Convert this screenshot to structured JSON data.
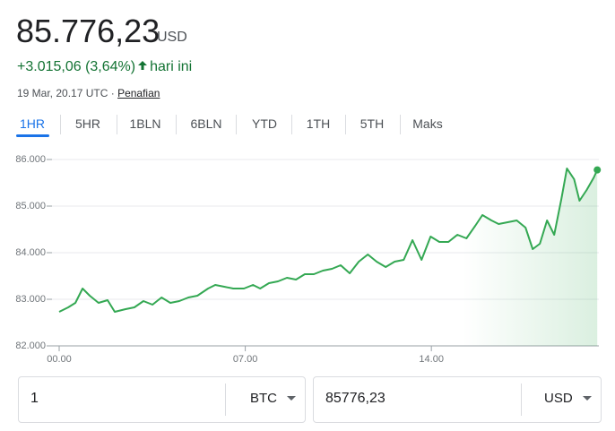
{
  "header": {
    "price": "85.776,23",
    "currency": "USD",
    "change": "+3.015,06 (3,64%)",
    "period": "hari ini",
    "timestamp": "19 Mar, 20.17 UTC ·",
    "disclaimer": "Penafian"
  },
  "tabs": [
    "1HR",
    "5HR",
    "1BLN",
    "6BLN",
    "YTD",
    "1TH",
    "5TH",
    "Maks"
  ],
  "converter": {
    "amount": "1",
    "from": "BTC",
    "result": "85776,23",
    "to": "USD"
  },
  "chart_data": {
    "type": "line",
    "x": [
      0,
      0.34,
      0.61,
      0.88,
      1.15,
      1.48,
      1.82,
      2.09,
      2.5,
      2.83,
      3.17,
      3.51,
      3.85,
      4.18,
      4.52,
      4.86,
      5.2,
      5.6,
      5.87,
      6.21,
      6.55,
      6.95,
      7.29,
      7.56,
      7.89,
      8.23,
      8.57,
      8.91,
      9.24,
      9.58,
      9.92,
      10.26,
      10.59,
      10.93,
      11.27,
      11.61,
      11.94,
      12.28,
      12.62,
      12.96,
      13.29,
      13.63,
      13.97,
      14.3,
      14.64,
      14.98,
      15.32,
      15.65,
      15.92,
      16.26,
      16.53,
      16.87,
      17.21,
      17.54,
      17.81,
      18.08,
      18.35,
      18.62,
      18.89,
      19.1,
      19.37,
      19.57,
      19.84,
      20.11,
      20.24
    ],
    "series": [
      {
        "name": "BTC",
        "color": "#34a853",
        "values": [
          82731,
          82827,
          82923,
          83231,
          83077,
          82923,
          82981,
          82731,
          82788,
          82827,
          82962,
          82885,
          83038,
          82923,
          82962,
          83038,
          83077,
          83231,
          83308,
          83269,
          83231,
          83231,
          83308,
          83231,
          83346,
          83385,
          83462,
          83423,
          83538,
          83538,
          83615,
          83654,
          83731,
          83558,
          83808,
          83962,
          83808,
          83692,
          83808,
          83846,
          84269,
          83846,
          84346,
          84231,
          84231,
          84385,
          84308,
          84577,
          84808,
          84692,
          84615,
          84654,
          84692,
          84538,
          84077,
          84192,
          84692,
          84385,
          85154,
          85808,
          85577,
          85115,
          85346,
          85615,
          85776.23
        ]
      }
    ],
    "xlim": [
      0,
      20.3
    ],
    "xticks": [
      {
        "value": 0,
        "label": "00.00"
      },
      {
        "value": 7,
        "label": "07.00"
      },
      {
        "value": 14,
        "label": "14.00"
      }
    ],
    "ylim": [
      82000,
      86000
    ],
    "yticks": [
      {
        "value": 82000,
        "label": "82.000"
      },
      {
        "value": 83000,
        "label": "83.000"
      },
      {
        "value": 84000,
        "label": "84.000"
      },
      {
        "value": 85000,
        "label": "85.000"
      },
      {
        "value": 86000,
        "label": "86.000"
      }
    ],
    "grid": true
  }
}
